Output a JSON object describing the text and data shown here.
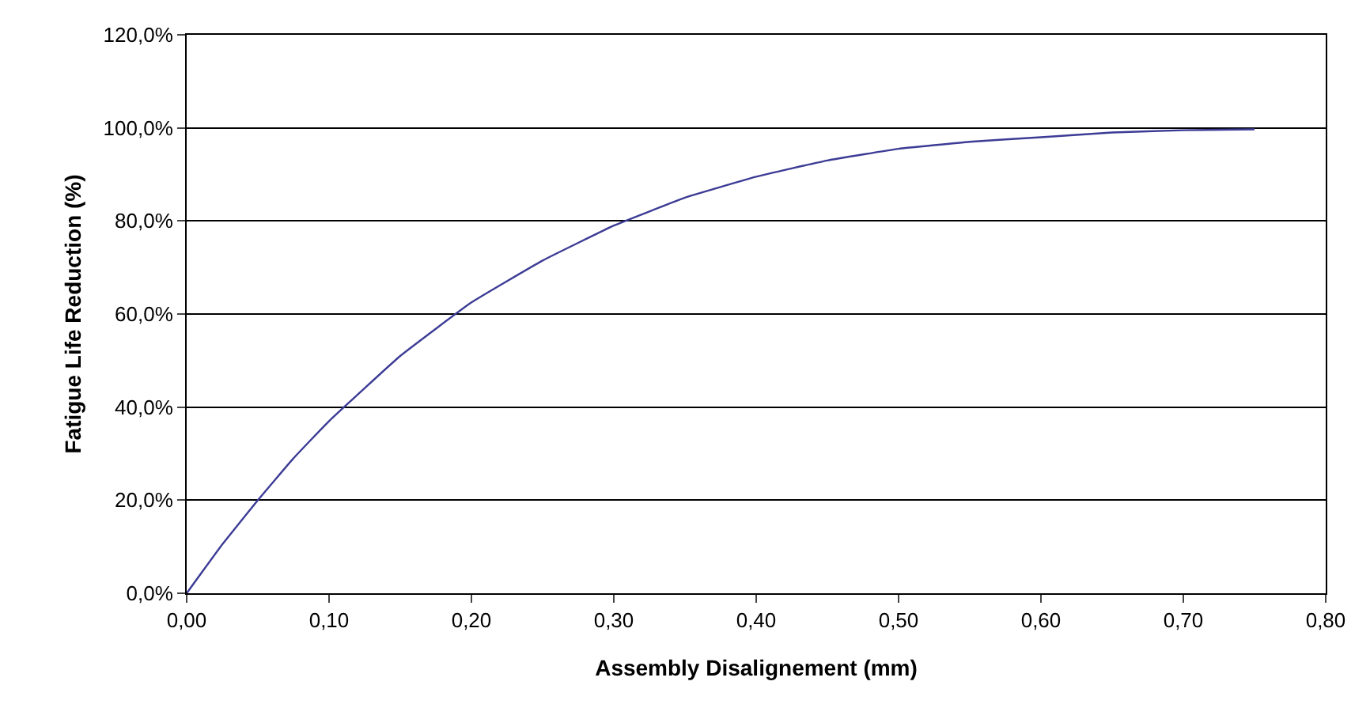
{
  "chart_data": {
    "type": "line",
    "xlabel": "Assembly Disalignement (mm)",
    "ylabel": "Fatigue Life Reduction (%)",
    "x": [
      0,
      0.025,
      0.05,
      0.075,
      0.1,
      0.15,
      0.2,
      0.25,
      0.3,
      0.35,
      0.4,
      0.45,
      0.5,
      0.55,
      0.6,
      0.65,
      0.7,
      0.75
    ],
    "series": [
      {
        "color": "#3c3c96",
        "values": [
          0,
          10.5,
          20,
          29,
          37,
          51,
          62.5,
          71.5,
          79,
          85,
          89.5,
          93,
          95.5,
          97,
          98,
          99,
          99.5,
          99.7
        ]
      }
    ],
    "xlim": [
      0,
      0.8
    ],
    "ylim": [
      0,
      120
    ],
    "xticks": [
      {
        "value": 0,
        "label": "0,00"
      },
      {
        "value": 0.1,
        "label": "0,10"
      },
      {
        "value": 0.2,
        "label": "0,20"
      },
      {
        "value": 0.3,
        "label": "0,30"
      },
      {
        "value": 0.4,
        "label": "0,40"
      },
      {
        "value": 0.5,
        "label": "0,50"
      },
      {
        "value": 0.6,
        "label": "0,60"
      },
      {
        "value": 0.7,
        "label": "0,70"
      },
      {
        "value": 0.8,
        "label": "0,80"
      }
    ],
    "yticks": [
      {
        "value": 0,
        "label": "0,0%"
      },
      {
        "value": 20,
        "label": "20,0%"
      },
      {
        "value": 40,
        "label": "40,0%"
      },
      {
        "value": 60,
        "label": "60,0%"
      },
      {
        "value": 80,
        "label": "80,0%"
      },
      {
        "value": 100,
        "label": "100,0%"
      },
      {
        "value": 120,
        "label": "120,0%"
      }
    ],
    "grid": "y",
    "marker": "none",
    "line_style": "solid"
  }
}
